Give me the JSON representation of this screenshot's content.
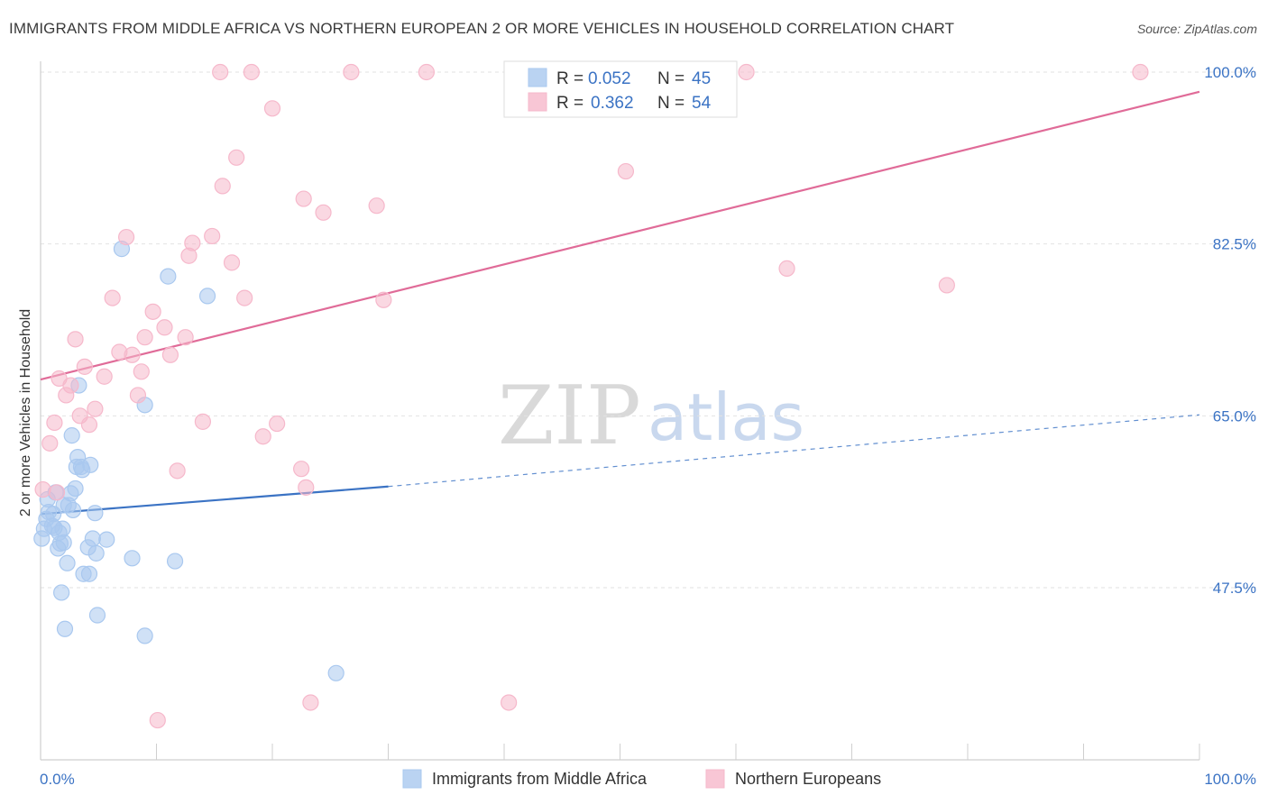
{
  "header": {
    "title": "IMMIGRANTS FROM MIDDLE AFRICA VS NORTHERN EUROPEAN 2 OR MORE VEHICLES IN HOUSEHOLD CORRELATION CHART",
    "source": "Source: ZipAtlas.com"
  },
  "watermark": {
    "zip": "ZIP",
    "atlas": "atlas"
  },
  "legend": {
    "items": [
      {
        "r_label": "R =",
        "r_value": "0.052",
        "n_label": "N =",
        "n_value": "45",
        "color": "#a9c8ef"
      },
      {
        "r_label": "R =",
        "r_value": "0.362",
        "n_label": "N =",
        "n_value": "54",
        "color": "#f6b8cb"
      }
    ]
  },
  "chart_data": {
    "type": "scatter",
    "title": "IMMIGRANTS FROM MIDDLE AFRICA VS NORTHERN EUROPEAN 2 OR MORE VEHICLES IN HOUSEHOLD CORRELATION CHART",
    "xlabel": "",
    "ylabel": "2 or more Vehicles in Household",
    "xlim": [
      0,
      100
    ],
    "ylim": [
      32,
      101
    ],
    "x_tick_labels": [
      "0.0%",
      "100.0%"
    ],
    "y_ticks": [
      47.5,
      65.0,
      82.5,
      100.0
    ],
    "y_tick_labels": [
      "47.5%",
      "65.0%",
      "82.5%",
      "100.0%"
    ],
    "grid": true,
    "series": [
      {
        "name": "Immigrants from Middle Africa",
        "color": "#3b73c4",
        "fill": "#a9c8ef",
        "trend": {
          "x0": 0,
          "y0": 55.0,
          "x1": 30,
          "y1": 57.8,
          "dash_to_x": 100,
          "dash_to_y": 65.1
        },
        "points": [
          [
            0.3,
            53.5
          ],
          [
            0.5,
            54.5
          ],
          [
            0.6,
            56.5
          ],
          [
            0.7,
            55.2
          ],
          [
            1.0,
            53.8
          ],
          [
            1.1,
            55.0
          ],
          [
            1.2,
            53.6
          ],
          [
            1.3,
            57.2
          ],
          [
            1.5,
            51.5
          ],
          [
            1.6,
            53.1
          ],
          [
            1.7,
            52.0
          ],
          [
            1.8,
            47.0
          ],
          [
            1.9,
            53.5
          ],
          [
            2.0,
            52.1
          ],
          [
            2.0,
            55.9
          ],
          [
            2.1,
            43.3
          ],
          [
            2.3,
            50.0
          ],
          [
            2.4,
            55.9
          ],
          [
            2.6,
            57.1
          ],
          [
            2.7,
            63.0
          ],
          [
            2.8,
            55.4
          ],
          [
            3.0,
            57.6
          ],
          [
            3.1,
            59.8
          ],
          [
            3.2,
            60.8
          ],
          [
            3.3,
            68.1
          ],
          [
            3.5,
            59.8
          ],
          [
            3.6,
            59.5
          ],
          [
            3.7,
            48.9
          ],
          [
            4.1,
            51.6
          ],
          [
            4.2,
            48.9
          ],
          [
            4.3,
            60.0
          ],
          [
            4.5,
            52.5
          ],
          [
            4.7,
            55.1
          ],
          [
            4.8,
            51.0
          ],
          [
            4.9,
            44.7
          ],
          [
            5.7,
            52.4
          ],
          [
            7.0,
            82.0
          ],
          [
            7.9,
            50.5
          ],
          [
            9.0,
            42.6
          ],
          [
            9.0,
            66.1
          ],
          [
            11.0,
            79.2
          ],
          [
            11.6,
            50.2
          ],
          [
            14.4,
            77.2
          ],
          [
            25.5,
            38.8
          ],
          [
            0.1,
            52.5
          ]
        ]
      },
      {
        "name": "Northern Europeans",
        "color": "#e06b98",
        "fill": "#f6b8cb",
        "trend": {
          "x0": 0,
          "y0": 68.7,
          "x1": 100,
          "y1": 98.0
        },
        "points": [
          [
            0.2,
            57.5
          ],
          [
            0.8,
            62.2
          ],
          [
            1.2,
            64.3
          ],
          [
            1.4,
            57.2
          ],
          [
            1.6,
            68.8
          ],
          [
            2.2,
            67.1
          ],
          [
            2.6,
            68.1
          ],
          [
            3.0,
            72.8
          ],
          [
            3.4,
            65.0
          ],
          [
            3.8,
            70.0
          ],
          [
            4.2,
            64.1
          ],
          [
            4.7,
            65.7
          ],
          [
            5.5,
            69.0
          ],
          [
            6.2,
            77.0
          ],
          [
            6.8,
            71.5
          ],
          [
            7.4,
            83.2
          ],
          [
            7.9,
            71.2
          ],
          [
            8.4,
            67.1
          ],
          [
            8.7,
            69.5
          ],
          [
            9.0,
            73.0
          ],
          [
            9.7,
            75.6
          ],
          [
            10.1,
            34.0
          ],
          [
            10.7,
            74.0
          ],
          [
            11.2,
            71.2
          ],
          [
            11.8,
            59.4
          ],
          [
            12.5,
            73.0
          ],
          [
            12.8,
            81.3
          ],
          [
            13.1,
            82.6
          ],
          [
            14.0,
            64.4
          ],
          [
            14.8,
            83.3
          ],
          [
            15.5,
            100.0
          ],
          [
            15.7,
            88.4
          ],
          [
            16.5,
            80.6
          ],
          [
            16.9,
            91.3
          ],
          [
            17.6,
            77.0
          ],
          [
            18.2,
            100.0
          ],
          [
            19.2,
            62.9
          ],
          [
            20.0,
            96.3
          ],
          [
            20.4,
            64.2
          ],
          [
            22.5,
            59.6
          ],
          [
            22.7,
            87.1
          ],
          [
            22.9,
            57.7
          ],
          [
            23.3,
            35.8
          ],
          [
            24.4,
            85.7
          ],
          [
            26.8,
            100.0
          ],
          [
            29.0,
            86.4
          ],
          [
            29.6,
            76.8
          ],
          [
            33.3,
            100.0
          ],
          [
            40.4,
            35.8
          ],
          [
            50.5,
            89.9
          ],
          [
            60.9,
            100.0
          ],
          [
            64.4,
            80.0
          ],
          [
            78.2,
            78.3
          ],
          [
            94.9,
            100.0
          ]
        ]
      }
    ]
  },
  "bottom_legend": {
    "items": [
      {
        "label": "Immigrants from Middle Africa",
        "color": "#a9c8ef"
      },
      {
        "label": "Northern Europeans",
        "color": "#f6b8cb"
      }
    ]
  }
}
